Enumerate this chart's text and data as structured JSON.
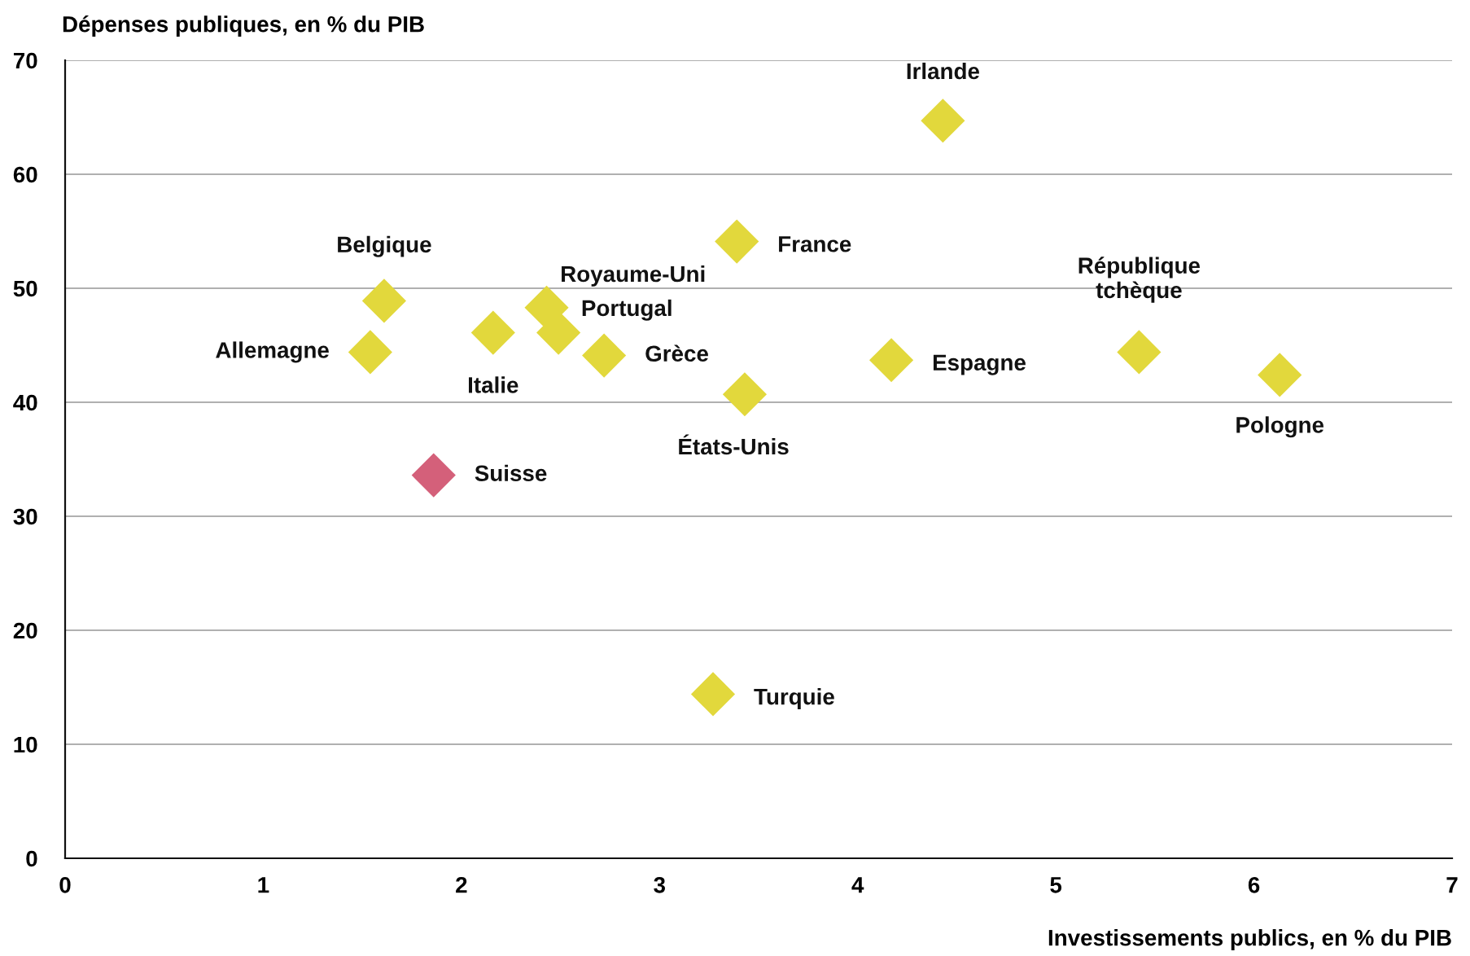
{
  "chart_data": {
    "type": "scatter",
    "ylabel": "Dépenses publiques, en % du PIB",
    "xlabel": "Investissements publics, en % du PIB",
    "series": [
      {
        "x": [
          4.43,
          3.39,
          1.61,
          2.43,
          2.49,
          2.16,
          1.54,
          2.72,
          4.17,
          5.42,
          6.13,
          3.43,
          1.86,
          3.27
        ],
        "values": [
          64.7,
          54.1,
          48.9,
          48.3,
          46.1,
          46.1,
          44.4,
          44.1,
          43.7,
          44.4,
          42.4,
          40.7,
          33.6,
          14.4
        ],
        "colors": [
          "#e2d83c",
          "#e2d83c",
          "#e2d83c",
          "#e2d83c",
          "#e2d83c",
          "#e2d83c",
          "#e2d83c",
          "#e2d83c",
          "#e2d83c",
          "#e2d83c",
          "#e2d83c",
          "#e2d83c",
          "#d4607a",
          "#e2d83c"
        ]
      }
    ],
    "annotations": [
      {
        "text": "Irlande",
        "x": 4.43,
        "y": 64.7
      },
      {
        "text": "France",
        "x": 3.39,
        "y": 54.1
      },
      {
        "text": "Belgique",
        "x": 1.61,
        "y": 48.9
      },
      {
        "text": "Royaume-Uni",
        "x": 2.43,
        "y": 48.3
      },
      {
        "text": "Portugal",
        "x": 2.49,
        "y": 46.1
      },
      {
        "text": "Italie",
        "x": 2.16,
        "y": 46.1
      },
      {
        "text": "Allemagne",
        "x": 1.54,
        "y": 44.4
      },
      {
        "text": "Grèce",
        "x": 2.72,
        "y": 44.1
      },
      {
        "text": "Espagne",
        "x": 4.17,
        "y": 43.7
      },
      {
        "text": "République\ntchèque",
        "x": 5.42,
        "y": 44.4
      },
      {
        "text": "Pologne",
        "x": 6.13,
        "y": 42.4
      },
      {
        "text": "États-Unis",
        "x": 3.43,
        "y": 40.7
      },
      {
        "text": "Suisse",
        "x": 1.86,
        "y": 33.6
      },
      {
        "text": "Turquie",
        "x": 3.27,
        "y": 14.4
      }
    ],
    "marker": "diamond",
    "xlim": [
      0,
      7
    ],
    "xticks": [
      0,
      1,
      2,
      3,
      4,
      5,
      6,
      7
    ],
    "ylim": [
      0,
      70
    ],
    "yticks": [
      0,
      10,
      20,
      30,
      40,
      50,
      60,
      70
    ],
    "grid": "y"
  }
}
